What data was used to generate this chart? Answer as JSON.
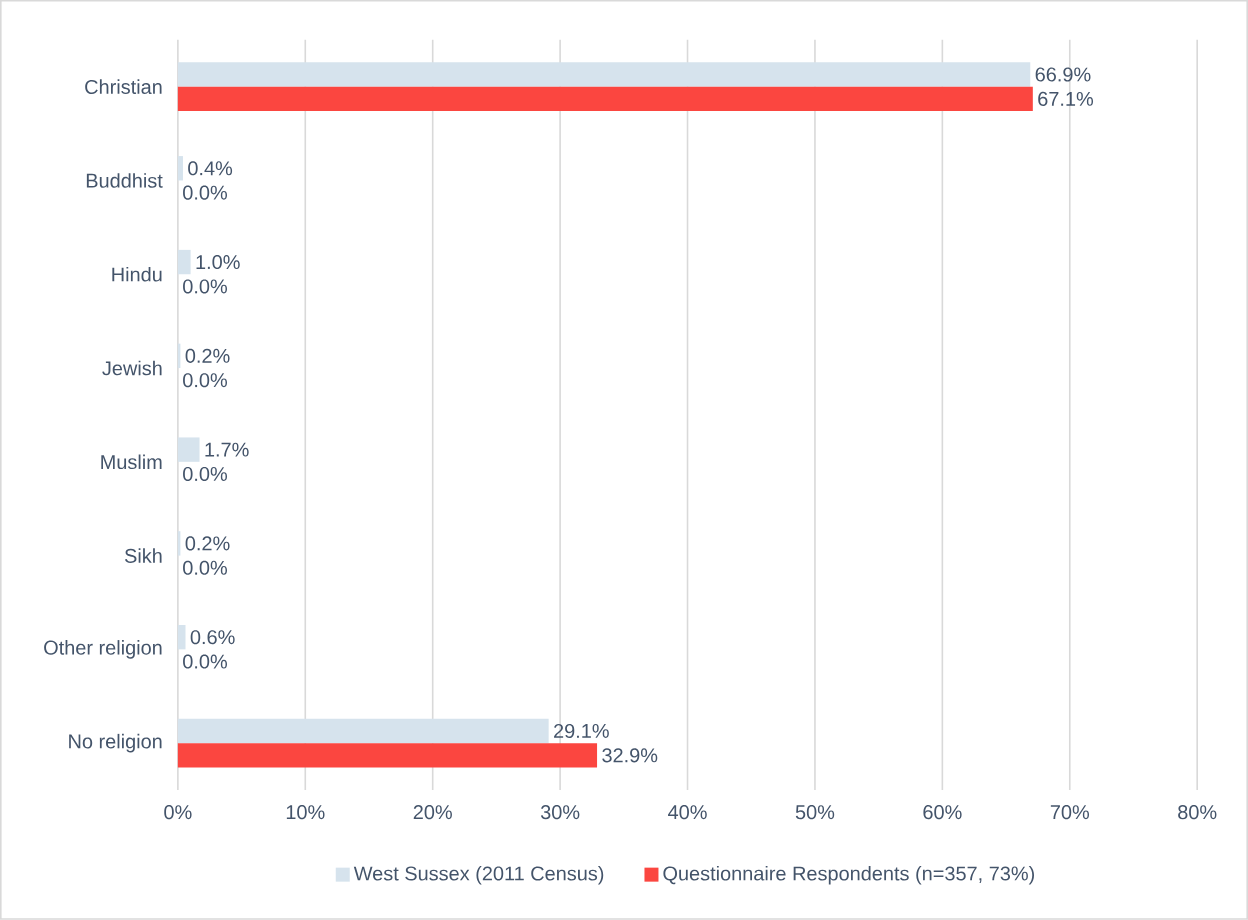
{
  "chart_data": {
    "type": "bar",
    "orientation": "horizontal",
    "categories": [
      "Christian",
      "Buddhist",
      "Hindu",
      "Jewish",
      "Muslim",
      "Sikh",
      "Other religion",
      "No religion"
    ],
    "series": [
      {
        "name": "West Sussex (2011 Census)",
        "color": "#d6e3ed",
        "values": [
          66.9,
          0.4,
          1.0,
          0.2,
          1.7,
          0.2,
          0.6,
          29.1
        ],
        "value_labels": [
          "66.9%",
          "0.4%",
          "1.0%",
          "0.2%",
          "1.7%",
          "0.2%",
          "0.6%",
          "29.1%"
        ]
      },
      {
        "name": "Questionnaire Respondents (n=357, 73%)",
        "color": "#fb4640",
        "values": [
          67.1,
          0.0,
          0.0,
          0.0,
          0.0,
          0.0,
          0.0,
          32.9
        ],
        "value_labels": [
          "67.1%",
          "0.0%",
          "0.0%",
          "0.0%",
          "0.0%",
          "0.0%",
          "0.0%",
          "32.9%"
        ]
      }
    ],
    "xlim": [
      0,
      80
    ],
    "xticks": [
      {
        "value": 0,
        "label": "0%"
      },
      {
        "value": 10,
        "label": "10%"
      },
      {
        "value": 20,
        "label": "20%"
      },
      {
        "value": 30,
        "label": "30%"
      },
      {
        "value": 40,
        "label": "40%"
      },
      {
        "value": 50,
        "label": "50%"
      },
      {
        "value": 60,
        "label": "60%"
      },
      {
        "value": 70,
        "label": "70%"
      },
      {
        "value": 80,
        "label": "80%"
      }
    ],
    "grid": "x",
    "legend": "bottom"
  }
}
